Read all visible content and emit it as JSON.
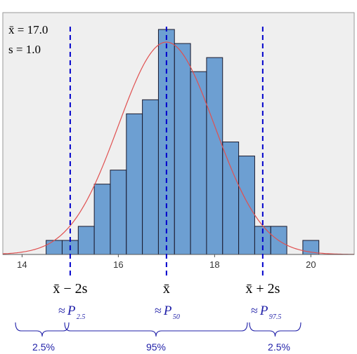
{
  "chart_data": {
    "type": "bar",
    "subtype": "histogram",
    "bin_width": 0.333,
    "bins": [
      {
        "start": 14.5,
        "count": 1
      },
      {
        "start": 14.833,
        "count": 1
      },
      {
        "start": 15.167,
        "count": 2
      },
      {
        "start": 15.5,
        "count": 5
      },
      {
        "start": 15.833,
        "count": 6
      },
      {
        "start": 16.167,
        "count": 10
      },
      {
        "start": 16.5,
        "count": 11
      },
      {
        "start": 16.833,
        "count": 16
      },
      {
        "start": 17.167,
        "count": 15
      },
      {
        "start": 17.5,
        "count": 13
      },
      {
        "start": 17.833,
        "count": 14
      },
      {
        "start": 18.167,
        "count": 8
      },
      {
        "start": 18.5,
        "count": 7
      },
      {
        "start": 18.833,
        "count": 2
      },
      {
        "start": 19.167,
        "count": 2
      },
      {
        "start": 19.5,
        "count": 0
      },
      {
        "start": 19.833,
        "count": 1
      }
    ],
    "xlim": [
      13.6,
      20.9
    ],
    "ylim": [
      0,
      16.3
    ],
    "x_ticks": [
      "14",
      "16",
      "18",
      "20"
    ],
    "x_tick_values": [
      14,
      16,
      18,
      20
    ],
    "grid": false,
    "normal_curve": {
      "mean": 17.0,
      "sd": 1.0,
      "peak_count": 15.1,
      "color": "#e05050"
    },
    "stats": {
      "mean_label": "x̄ = 17.0",
      "sd_label": "s = 1.0"
    },
    "reference_lines": [
      {
        "x": 15.0,
        "label": "x̄ − 2s",
        "approx": "≈",
        "percentile_symbol": "P",
        "percentile_sub": "2.5"
      },
      {
        "x": 17.0,
        "label": "x̄",
        "approx": "≈",
        "percentile_symbol": "P",
        "percentile_sub": "50"
      },
      {
        "x": 19.0,
        "label": "x̄ + 2s",
        "approx": "≈",
        "percentile_symbol": "P",
        "percentile_sub": "97.5"
      }
    ],
    "regions": [
      "2.5%",
      "95%",
      "2.5%"
    ],
    "colors": {
      "bar_fill": "#6d9fd2",
      "bar_stroke": "#1a1a2e",
      "plot_bg": "#efefef",
      "ref_line": "#0000cc",
      "annotation": "#1f1fa8"
    }
  }
}
